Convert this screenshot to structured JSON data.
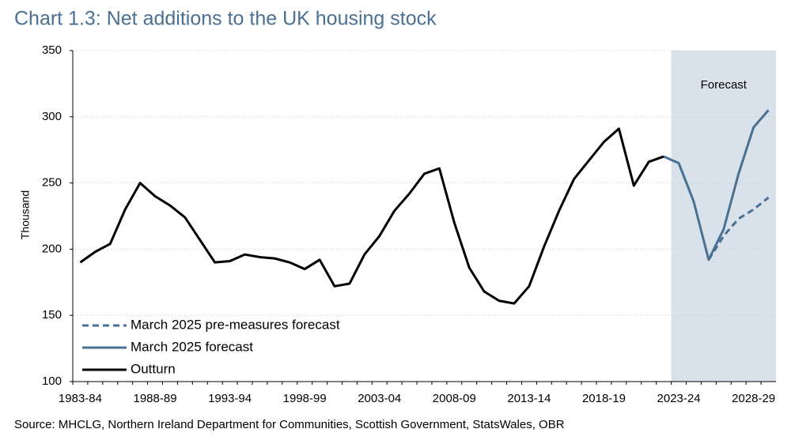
{
  "chart_data": {
    "type": "line",
    "title": "Chart 1.3: Net additions to the UK housing stock",
    "y_label": "Thousand",
    "source": "Source: MHCLG, Northern Ireland Department for Communities, Scottish Government, StatsWales, OBR",
    "annotation": "Forecast",
    "categories": [
      "1983-84",
      null,
      null,
      null,
      null,
      "1988-89",
      null,
      null,
      null,
      null,
      "1993-94",
      null,
      null,
      null,
      null,
      "1998-99",
      null,
      null,
      null,
      null,
      "2003-04",
      null,
      null,
      null,
      null,
      "2008-09",
      null,
      null,
      null,
      null,
      "2013-14",
      null,
      null,
      null,
      null,
      "2018-19",
      null,
      null,
      null,
      null,
      "2023-24",
      null,
      null,
      null,
      null,
      "2028-29",
      null
    ],
    "series": [
      {
        "name": "March 2025 pre-measures forecast",
        "color": "#4a7093",
        "line_style": "dashed",
        "values": [
          null,
          null,
          null,
          null,
          null,
          null,
          null,
          null,
          null,
          null,
          null,
          null,
          null,
          null,
          null,
          null,
          null,
          null,
          null,
          null,
          null,
          null,
          null,
          null,
          null,
          null,
          null,
          null,
          null,
          null,
          null,
          null,
          null,
          null,
          null,
          null,
          null,
          null,
          null,
          null,
          null,
          null,
          192,
          210,
          223,
          230,
          239
        ]
      },
      {
        "name": "March 2025 forecast",
        "color": "#4a7093",
        "line_style": "solid",
        "values": [
          null,
          null,
          null,
          null,
          null,
          null,
          null,
          null,
          null,
          null,
          null,
          null,
          null,
          null,
          null,
          null,
          null,
          null,
          null,
          null,
          null,
          null,
          null,
          null,
          null,
          null,
          null,
          null,
          null,
          null,
          null,
          null,
          null,
          null,
          null,
          null,
          null,
          null,
          null,
          270,
          265,
          236,
          192,
          215,
          257,
          292,
          305
        ]
      },
      {
        "name": "Outturn",
        "color": "#000000",
        "line_style": "solid",
        "values": [
          190,
          198,
          204,
          230,
          250,
          240,
          233,
          224,
          207,
          190,
          191,
          196,
          194,
          193,
          190,
          185,
          192,
          172,
          174,
          196,
          210,
          229,
          242,
          257,
          261,
          220,
          186,
          168,
          161,
          159,
          172,
          202,
          229,
          253,
          267,
          281,
          291,
          248,
          266,
          270,
          null,
          null,
          null,
          null,
          null,
          null,
          null
        ]
      }
    ],
    "ylim": [
      100,
      350
    ],
    "yticks": [
      100,
      150,
      200,
      250,
      300,
      350
    ],
    "grid": true,
    "legend": "lower left"
  }
}
